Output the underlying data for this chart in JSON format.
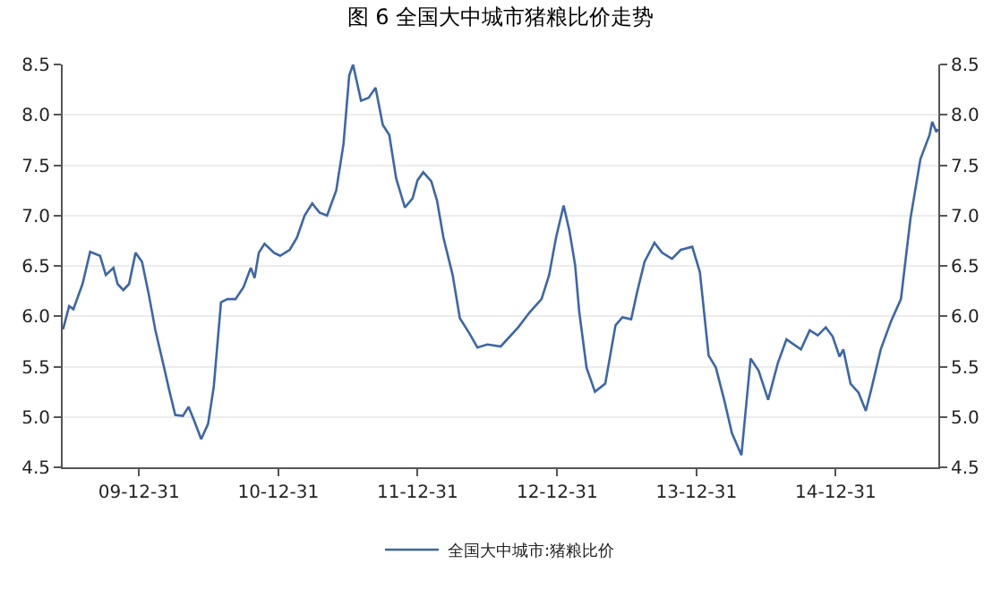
{
  "chart_data": {
    "type": "line",
    "title": "图 6 全国大中城市猪粮比价走势",
    "x": [
      "2009-06-15",
      "2009-07-01",
      "2009-07-12",
      "2009-08-05",
      "2009-08-25",
      "2009-09-20",
      "2009-10-05",
      "2009-10-25",
      "2009-11-05",
      "2009-11-20",
      "2009-12-05",
      "2009-12-22",
      "2010-01-08",
      "2010-01-25",
      "2010-02-12",
      "2010-03-05",
      "2010-03-20",
      "2010-04-05",
      "2010-04-25",
      "2010-05-10",
      "2010-05-25",
      "2010-06-12",
      "2010-06-30",
      "2010-07-15",
      "2010-08-03",
      "2010-08-20",
      "2010-09-10",
      "2010-10-01",
      "2010-10-20",
      "2010-10-30",
      "2010-11-10",
      "2010-11-25",
      "2010-12-20",
      "2011-01-05",
      "2011-01-30",
      "2011-02-18",
      "2011-03-10",
      "2011-03-30",
      "2011-04-18",
      "2011-05-08",
      "2011-06-01",
      "2011-06-20",
      "2011-07-05",
      "2011-07-15",
      "2011-08-05",
      "2011-08-25",
      "2011-09-12",
      "2011-10-01",
      "2011-10-18",
      "2011-11-05",
      "2011-11-28",
      "2011-12-18",
      "2011-12-31",
      "2012-01-15",
      "2012-02-05",
      "2012-02-20",
      "2012-03-08",
      "2012-04-01",
      "2012-04-20",
      "2012-05-15",
      "2012-06-05",
      "2012-07-01",
      "2012-08-05",
      "2012-09-20",
      "2012-10-20",
      "2012-11-20",
      "2012-12-10",
      "2012-12-28",
      "2013-01-17",
      "2013-02-01",
      "2013-02-16",
      "2013-02-27",
      "2013-03-18",
      "2013-04-09",
      "2013-05-06",
      "2013-06-02",
      "2013-06-20",
      "2013-07-13",
      "2013-07-28",
      "2013-08-17",
      "2013-09-12",
      "2013-10-02",
      "2013-10-28",
      "2013-11-20",
      "2013-12-20",
      "2014-01-09",
      "2014-02-01",
      "2014-02-20",
      "2014-03-15",
      "2014-04-03",
      "2014-04-28",
      "2014-05-22",
      "2014-06-12",
      "2014-07-07",
      "2014-08-01",
      "2014-08-24",
      "2014-10-01",
      "2014-10-24",
      "2014-11-14",
      "2014-12-05",
      "2014-12-23",
      "2015-01-10",
      "2015-01-20",
      "2015-02-08",
      "2015-03-01",
      "2015-03-20",
      "2015-04-03",
      "2015-04-28",
      "2015-05-25",
      "2015-06-20",
      "2015-07-15",
      "2015-08-10",
      "2015-09-03",
      "2015-09-10",
      "2015-09-21",
      "2015-09-25"
    ],
    "series": [
      {
        "name": "全国大中城市:猪粮比价",
        "color": "#3c66a8",
        "values": [
          5.87,
          6.1,
          6.07,
          6.32,
          6.64,
          6.6,
          6.41,
          6.48,
          6.32,
          6.26,
          6.32,
          6.63,
          6.54,
          6.23,
          5.86,
          5.52,
          5.27,
          5.02,
          5.01,
          5.1,
          4.96,
          4.78,
          4.93,
          5.3,
          6.14,
          6.17,
          6.17,
          6.29,
          6.48,
          6.38,
          6.63,
          6.72,
          6.63,
          6.6,
          6.66,
          6.78,
          7.0,
          7.12,
          7.03,
          7.0,
          7.25,
          7.71,
          8.39,
          8.5,
          8.14,
          8.17,
          8.27,
          7.9,
          7.8,
          7.37,
          7.08,
          7.17,
          7.35,
          7.43,
          7.34,
          7.15,
          6.78,
          6.41,
          5.98,
          5.83,
          5.69,
          5.72,
          5.7,
          5.89,
          6.04,
          6.17,
          6.41,
          6.78,
          7.1,
          6.85,
          6.51,
          6.04,
          5.49,
          5.25,
          5.33,
          5.91,
          5.99,
          5.97,
          6.23,
          6.54,
          6.73,
          6.63,
          6.57,
          6.66,
          6.69,
          6.44,
          5.61,
          5.49,
          5.15,
          4.84,
          4.62,
          5.58,
          5.46,
          5.17,
          5.53,
          5.77,
          5.67,
          5.86,
          5.81,
          5.89,
          5.8,
          5.6,
          5.67,
          5.33,
          5.24,
          5.06,
          5.27,
          5.67,
          5.95,
          6.17,
          6.97,
          7.56,
          7.8,
          7.93,
          7.83,
          7.86
        ]
      }
    ],
    "xlim": [
      "2009-06-14",
      "2015-09-26"
    ],
    "xticks": [
      {
        "value": "2009-12-31",
        "label": "09-12-31"
      },
      {
        "value": "2010-12-31",
        "label": "10-12-31"
      },
      {
        "value": "2011-12-31",
        "label": "11-12-31"
      },
      {
        "value": "2012-12-31",
        "label": "12-12-31"
      },
      {
        "value": "2013-12-31",
        "label": "13-12-31"
      },
      {
        "value": "2014-12-31",
        "label": "14-12-31"
      }
    ],
    "ylim": [
      4.5,
      8.5
    ],
    "yticks": [
      4.5,
      {
        "value": 5,
        "label": "5.0"
      },
      5.5,
      {
        "value": 6,
        "label": "6.0"
      },
      6.5,
      {
        "value": 7,
        "label": "7.0"
      },
      7.5,
      {
        "value": 8,
        "label": "8.0"
      },
      8.5
    ],
    "y2lim": [
      4.5,
      8.5
    ],
    "y2ticks": [
      4.5,
      {
        "value": 5,
        "label": "5.0"
      },
      5.5,
      {
        "value": 6,
        "label": "6.0"
      },
      6.5,
      {
        "value": 7,
        "label": "7.0"
      },
      7.5,
      {
        "value": 8,
        "label": "8.0"
      },
      8.5
    ],
    "grid": "y",
    "legend": "bottom",
    "marker": "none",
    "line_style": "solid"
  }
}
